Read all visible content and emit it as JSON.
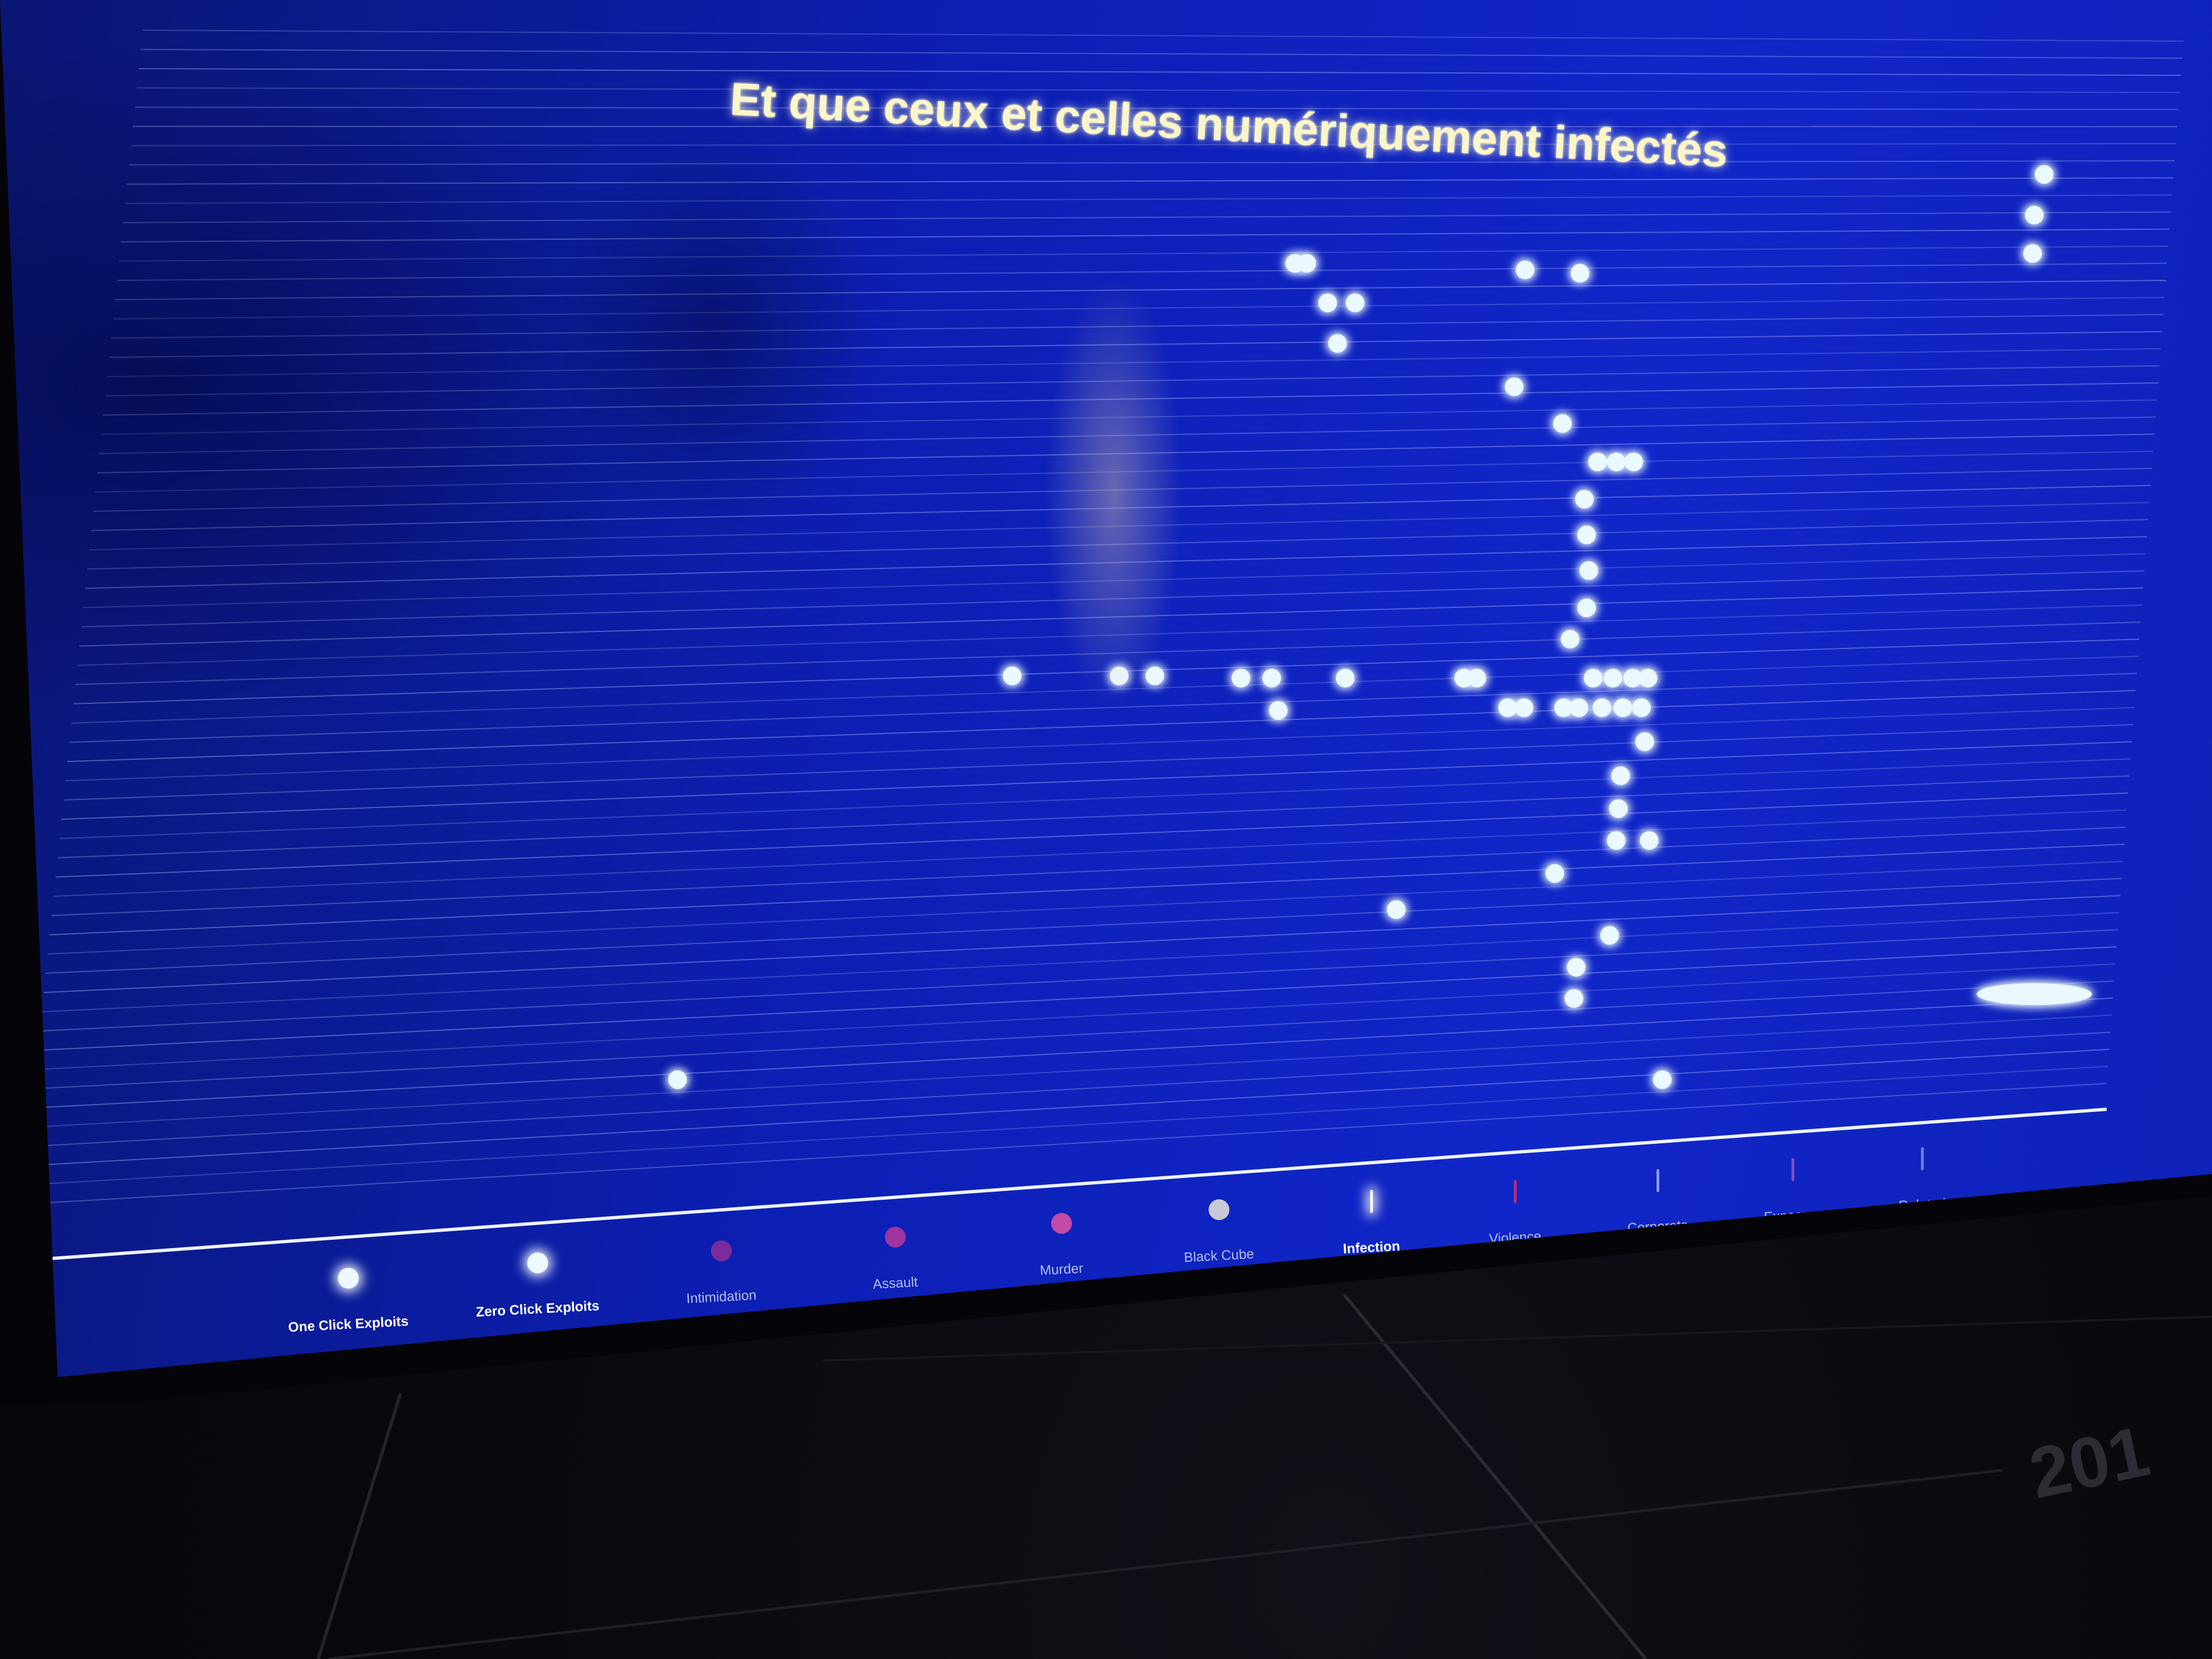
{
  "title": "Et que ceux et celles numériquement infectés",
  "legend": [
    {
      "label": "One Click Exploits",
      "marker": "dot",
      "color": "#eef8ff",
      "active": true
    },
    {
      "label": "Zero Click Exploits",
      "marker": "dot",
      "color": "#eef8ff",
      "active": true
    },
    {
      "label": "Intimidation",
      "marker": "dot",
      "color": "#7a2c9a",
      "active": false
    },
    {
      "label": "Assault",
      "marker": "dot",
      "color": "#a0339e",
      "active": false
    },
    {
      "label": "Murder",
      "marker": "dot",
      "color": "#c24aa8",
      "active": false
    },
    {
      "label": "Black Cube",
      "marker": "dot",
      "color": "#c7c9d9",
      "active": false
    },
    {
      "label": "Infection",
      "marker": "tick",
      "color": "#ffffff",
      "active": true
    },
    {
      "label": "Violence",
      "marker": "tick",
      "color": "#c0306a",
      "active": false
    },
    {
      "label": "Corporate",
      "marker": "tick",
      "color": "#8f9fe6",
      "active": false
    },
    {
      "label": "Exposure",
      "marker": "tick",
      "color": "#8a4fc0",
      "active": false
    },
    {
      "label": "Related",
      "marker": "tick",
      "color": "#6f7fd6",
      "active": false
    }
  ],
  "wall_text": "201",
  "colors": {
    "screen_background": "#0c1fb4",
    "row_line": "#a9b6ff",
    "glow_dot": "#eaf8ff",
    "title_text": "#fbf6c8"
  }
}
